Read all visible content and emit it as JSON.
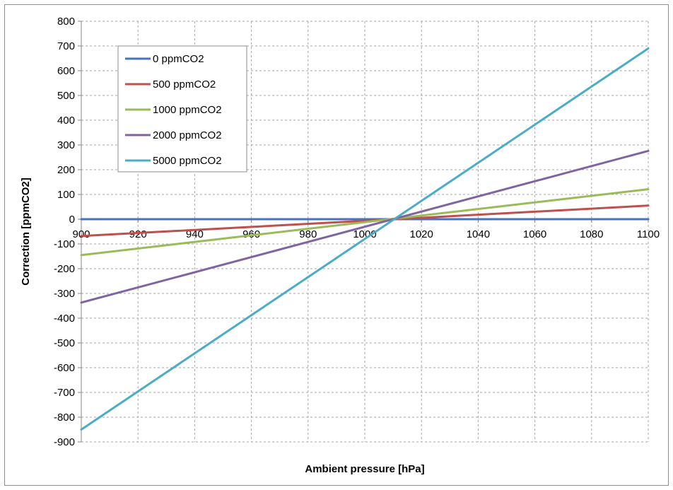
{
  "chart_data": {
    "type": "line",
    "title": "",
    "xlabel": "Ambient pressure [hPa]",
    "ylabel": "Correction [ppmCO2]",
    "xlim": [
      900,
      1100
    ],
    "ylim": [
      -900,
      800
    ],
    "x_ticks": [
      900,
      920,
      940,
      960,
      980,
      1000,
      1020,
      1040,
      1060,
      1080,
      1100
    ],
    "y_ticks": [
      800,
      700,
      600,
      500,
      400,
      300,
      200,
      100,
      0,
      -100,
      -200,
      -300,
      -400,
      -500,
      -600,
      -700,
      -800,
      -900
    ],
    "grid": true,
    "legend_position": "top-left",
    "series": [
      {
        "name": "0 ppmCO2",
        "color": "#4472c4",
        "x": [
          900,
          1100
        ],
        "y": [
          0,
          0
        ]
      },
      {
        "name": "500 ppmCO2",
        "color": "#c0504d",
        "x": [
          900,
          1100
        ],
        "y": [
          -68,
          55
        ]
      },
      {
        "name": "1000 ppmCO2",
        "color": "#9bbb59",
        "x": [
          900,
          1100
        ],
        "y": [
          -145,
          121
        ]
      },
      {
        "name": "2000 ppmCO2",
        "color": "#8064a2",
        "x": [
          900,
          1100
        ],
        "y": [
          -337,
          276
        ]
      },
      {
        "name": "5000 ppmCO2",
        "color": "#4bacc6",
        "x": [
          900,
          1100
        ],
        "y": [
          -850,
          690
        ]
      }
    ]
  }
}
